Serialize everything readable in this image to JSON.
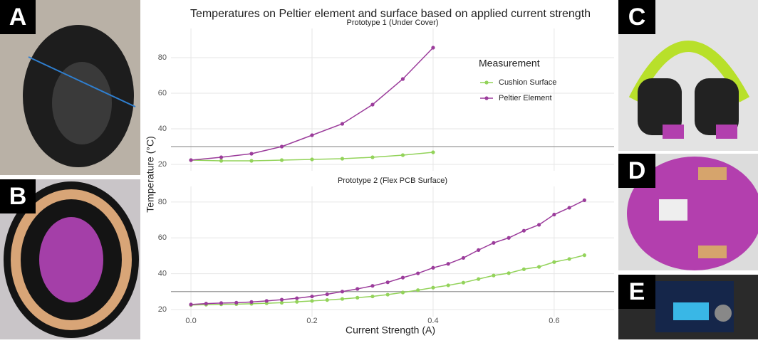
{
  "figure": {
    "title": "Temperatures on Peltier element and surface based on applied current strength",
    "x_label": "Current Strength (A)",
    "y_label": "Temperature (°C)",
    "legend_title": "Measurement",
    "panel_labels": [
      "A",
      "B",
      "C",
      "D",
      "E"
    ]
  },
  "chart_data": [
    {
      "type": "line",
      "title": "Prototype 1 (Under Cover)",
      "x": [
        0,
        0.05,
        0.1,
        0.15,
        0.2,
        0.25,
        0.3,
        0.35,
        0.4
      ],
      "series": [
        {
          "name": "Cushion Surface",
          "color": "#93d35a",
          "values": [
            22.4,
            22,
            22,
            22.4,
            22.8,
            23.2,
            24,
            25.2,
            26.8
          ]
        },
        {
          "name": "Peltier Element",
          "color": "#9b3c9b",
          "values": [
            22.4,
            24,
            26,
            30,
            36.4,
            42.8,
            53.6,
            68,
            85.6
          ]
        }
      ],
      "xlim": [
        -0.033,
        0.699
      ],
      "ylim": [
        16.4,
        96.4
      ],
      "xticks": [
        0,
        0.2,
        0.4,
        0.6
      ],
      "yticks": [
        20,
        40,
        60,
        80
      ],
      "hline": 30,
      "grid": true,
      "legend": "upper right"
    },
    {
      "type": "line",
      "title": "Prototype 2 (Flex PCB Surface)",
      "x": [
        0,
        0.025,
        0.05,
        0.075,
        0.1,
        0.125,
        0.15,
        0.175,
        0.2,
        0.225,
        0.25,
        0.275,
        0.3,
        0.325,
        0.35,
        0.375,
        0.4,
        0.425,
        0.45,
        0.475,
        0.5,
        0.525,
        0.55,
        0.575,
        0.6,
        0.625,
        0.65
      ],
      "series": [
        {
          "color": "#93d35a",
          "values": [
            22.5,
            22.7,
            22.9,
            23,
            23.2,
            23.5,
            23.8,
            24.3,
            24.8,
            25.3,
            25.9,
            26.6,
            27.3,
            28.3,
            29.5,
            30.8,
            32.2,
            33.5,
            35,
            37,
            39,
            40.3,
            42.5,
            43.8,
            46.5,
            48.2,
            50.3
          ]
        },
        {
          "color": "#9b3c9b",
          "values": [
            22.8,
            23.3,
            23.6,
            23.8,
            24.2,
            24.8,
            25.5,
            26.3,
            27.3,
            28.5,
            30,
            31.5,
            33.2,
            35.2,
            37.8,
            40.2,
            43.3,
            45.5,
            48.8,
            53.2,
            57.2,
            60,
            64,
            67.3,
            73,
            76.8,
            81
          ]
        }
      ],
      "xlim": [
        -0.033,
        0.699
      ],
      "ylim": [
        16,
        88.7
      ],
      "xticks": [
        {
          "value": 0,
          "label": "0.0"
        },
        0.2,
        0.4,
        0.6
      ],
      "yticks": [
        20,
        40,
        60,
        80
      ],
      "hline": 30,
      "grid": true
    }
  ]
}
